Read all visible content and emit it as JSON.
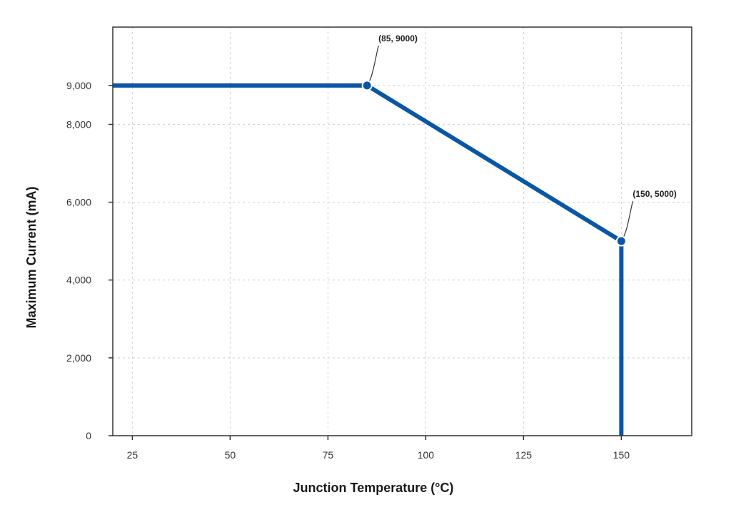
{
  "chart_data": {
    "type": "line",
    "xlabel": "Junction Temperature (°C)",
    "ylabel": "Maximum Current (mA)",
    "xlim": [
      20,
      168
    ],
    "ylim": [
      0,
      10500
    ],
    "x_ticks": [
      25,
      50,
      75,
      100,
      125,
      150
    ],
    "x_tick_labels": [
      "25",
      "50",
      "75",
      "100",
      "125",
      "150"
    ],
    "y_ticks": [
      0,
      2000,
      4000,
      6000,
      8000,
      9000
    ],
    "y_tick_labels": [
      "0",
      "2,000",
      "4,000",
      "6,000",
      "8,000",
      "9,000"
    ],
    "grid": true,
    "series": [
      {
        "x": [
          20,
          85,
          150,
          150
        ],
        "y": [
          9000,
          9000,
          5000,
          0
        ],
        "color": "#0a56a6"
      }
    ],
    "annotations": [
      {
        "x": 85,
        "y": 9000,
        "text": "(85, 9000)"
      },
      {
        "x": 150,
        "y": 5000,
        "text": "(150, 5000)"
      }
    ]
  }
}
